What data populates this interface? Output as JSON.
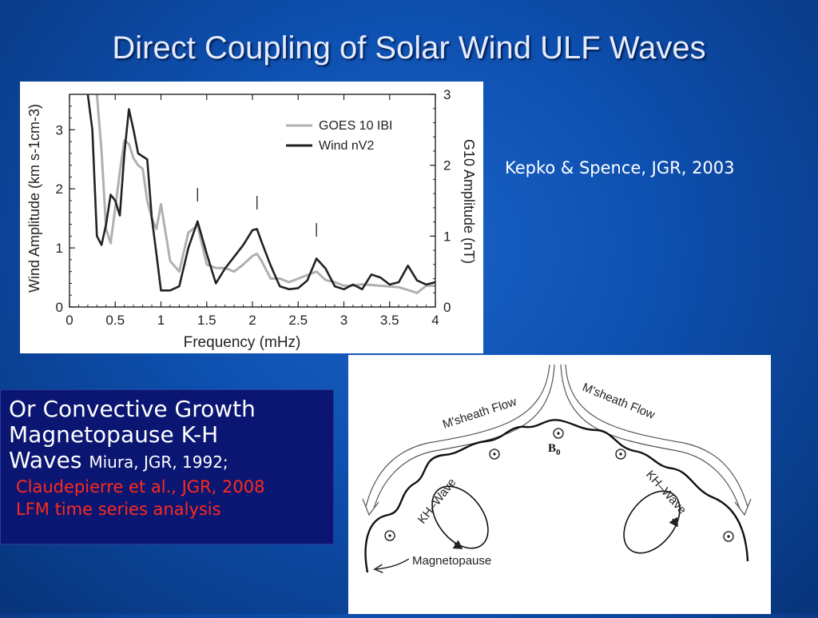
{
  "slide": {
    "title": "Direct Coupling of Solar Wind ULF Waves",
    "citation": "Kepko & Spence, JGR, 2003"
  },
  "text_box": {
    "line1": "Or Convective Growth",
    "line2": "Magnetopause K-H",
    "line3": "Waves",
    "line3_ref": "Miura, JGR, 1992;",
    "ref2": "Claudepierre et al., JGR, 2008",
    "ref3": "LFM time series analysis"
  },
  "diagram": {
    "flow_left": "M'sheath Flow",
    "flow_right": "M'sheath Flow",
    "wave_left": "KH–Wave",
    "wave_right": "KH–Wave",
    "b0": "B",
    "b0_sub": "0",
    "magnetopause": "Magnetopause"
  },
  "chart_data": {
    "type": "line",
    "xlabel": "Frequency (mHz)",
    "ylabel_left": "Wind Amplitude (km s-1cm-3)",
    "ylabel_right": "G10 Amplitude (nT)",
    "xlim": [
      0,
      4
    ],
    "ylim_left": [
      0,
      3.6
    ],
    "ylim_right": [
      0,
      3
    ],
    "x_ticks": [
      "0",
      "0.5",
      "1",
      "1.5",
      "2",
      "2.5",
      "3",
      "3.5",
      "4"
    ],
    "y_ticks_left": [
      "0",
      "1",
      "2",
      "3"
    ],
    "y_ticks_right": [
      "0",
      "1",
      "2",
      "3"
    ],
    "legend_position": "top-right",
    "peak_markers_x": [
      1.4,
      2.05,
      2.7
    ],
    "series": [
      {
        "name": "GOES 10 IBI",
        "axis": "right",
        "color": "#b0b0b0",
        "x": [
          0.3,
          0.35,
          0.4,
          0.45,
          0.5,
          0.55,
          0.6,
          0.65,
          0.7,
          0.75,
          0.8,
          0.85,
          0.9,
          0.95,
          1.0,
          1.1,
          1.2,
          1.3,
          1.4,
          1.5,
          1.6,
          1.7,
          1.8,
          1.9,
          2.0,
          2.05,
          2.1,
          2.2,
          2.3,
          2.4,
          2.5,
          2.6,
          2.7,
          2.8,
          2.9,
          3.0,
          3.1,
          3.2,
          3.4,
          3.6,
          3.8,
          3.9,
          4.0
        ],
        "y": [
          3.0,
          2.2,
          1.1,
          0.9,
          1.4,
          1.9,
          2.35,
          2.3,
          2.1,
          2.0,
          1.95,
          1.5,
          1.25,
          1.1,
          1.45,
          0.65,
          0.5,
          1.05,
          1.15,
          0.6,
          0.55,
          0.55,
          0.5,
          0.6,
          0.72,
          0.75,
          0.65,
          0.4,
          0.4,
          0.35,
          0.4,
          0.45,
          0.5,
          0.38,
          0.35,
          0.3,
          0.3,
          0.32,
          0.3,
          0.28,
          0.2,
          0.3,
          0.3
        ]
      },
      {
        "name": "Wind nV2",
        "axis": "left",
        "color": "#222222",
        "x": [
          0.2,
          0.25,
          0.3,
          0.35,
          0.4,
          0.45,
          0.5,
          0.55,
          0.6,
          0.65,
          0.7,
          0.75,
          0.8,
          0.85,
          0.9,
          0.95,
          1.0,
          1.1,
          1.2,
          1.3,
          1.4,
          1.5,
          1.6,
          1.7,
          1.8,
          1.9,
          2.0,
          2.05,
          2.1,
          2.2,
          2.3,
          2.4,
          2.5,
          2.6,
          2.7,
          2.8,
          2.9,
          3.0,
          3.1,
          3.2,
          3.3,
          3.4,
          3.5,
          3.6,
          3.7,
          3.8,
          3.9,
          4.0
        ],
        "y": [
          3.8,
          3.0,
          1.2,
          1.05,
          1.4,
          1.9,
          1.8,
          1.55,
          2.6,
          3.35,
          3.0,
          2.6,
          2.55,
          2.5,
          1.5,
          0.9,
          0.28,
          0.28,
          0.35,
          1.0,
          1.45,
          0.9,
          0.4,
          0.65,
          0.85,
          1.05,
          1.3,
          1.32,
          1.1,
          0.7,
          0.35,
          0.3,
          0.32,
          0.45,
          0.82,
          0.65,
          0.35,
          0.3,
          0.38,
          0.3,
          0.55,
          0.5,
          0.38,
          0.42,
          0.7,
          0.45,
          0.38,
          0.42
        ]
      }
    ]
  }
}
